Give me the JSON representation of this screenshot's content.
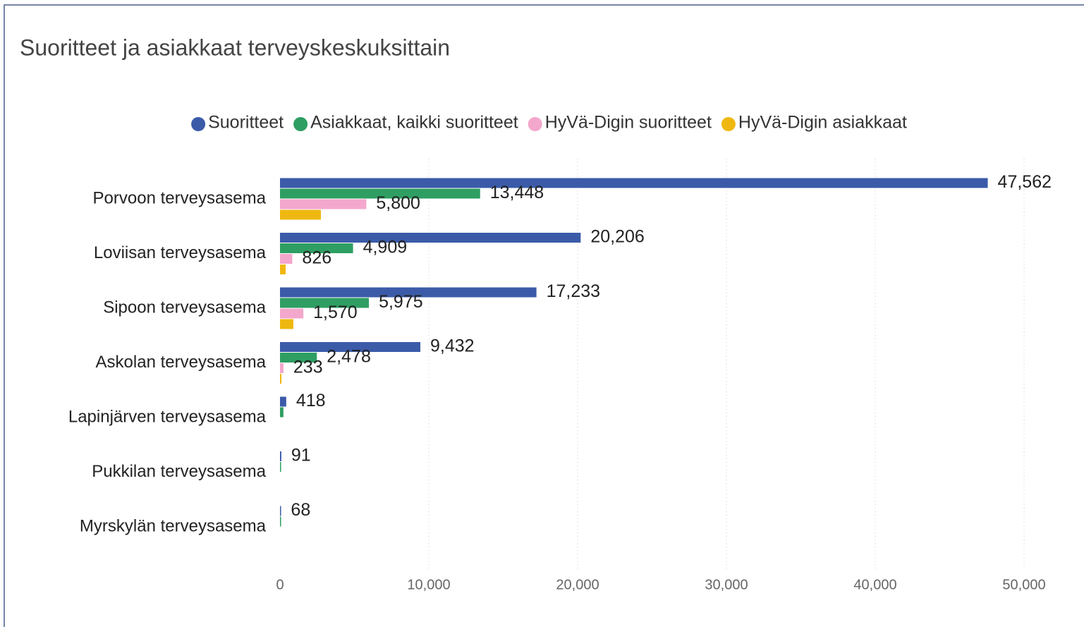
{
  "chart_data": {
    "type": "hbar",
    "title": "Suoritteet ja asiakkaat terveyskeskuksittain",
    "categories": [
      "Porvoon terveysasema",
      "Loviisan terveysasema",
      "Sipoon terveysasema",
      "Askolan terveysasema",
      "Lapinjärven terveysasema",
      "Pukkilan terveysasema",
      "Myrskylän terveysasema"
    ],
    "series": [
      {
        "name": "Suoritteet",
        "color": "#3b5ba9",
        "values": [
          47562,
          20206,
          17233,
          9432,
          418,
          91,
          68
        ],
        "value_labels": [
          "47,562",
          "20,206",
          "17,233",
          "9,432",
          "418",
          "91",
          "68"
        ]
      },
      {
        "name": "Asiakkaat, kaikki suoritteet",
        "color": "#2e9e62",
        "values": [
          13448,
          4909,
          5975,
          2478,
          230,
          60,
          40
        ],
        "value_labels": [
          "13,448",
          "4,909",
          "5,975",
          "2,478",
          null,
          null,
          null
        ]
      },
      {
        "name": "HyVä-Digin suoritteet",
        "color": "#f4a7cc",
        "values": [
          5800,
          826,
          1570,
          233,
          null,
          null,
          null
        ],
        "value_labels": [
          "5,800",
          "826",
          "1,570",
          "233",
          null,
          null,
          null
        ]
      },
      {
        "name": "HyVä-Digin asiakkaat",
        "color": "#efb810",
        "values": [
          2750,
          380,
          900,
          100,
          null,
          null,
          null
        ]
      }
    ],
    "xlim": [
      0,
      50000
    ],
    "xticks": [
      0,
      {
        "value": 10000,
        "label": "10,000"
      },
      {
        "value": 20000,
        "label": "20,000"
      },
      {
        "value": 30000,
        "label": "30,000"
      },
      {
        "value": 40000,
        "label": "40,000"
      },
      {
        "value": 50000,
        "label": "50,000"
      }
    ],
    "grid": true,
    "legend": "top"
  }
}
